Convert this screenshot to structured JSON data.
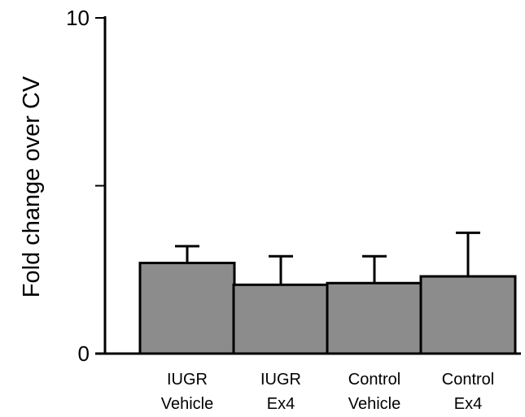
{
  "chart_data": {
    "type": "bar",
    "title": "",
    "xlabel": "",
    "ylabel": "Fold change over CV",
    "ylim": [
      0,
      10
    ],
    "y_ticks": [
      "0",
      "10"
    ],
    "grid": false,
    "categories": [
      [
        "IUGR",
        "Vehicle"
      ],
      [
        "IUGR",
        "Ex4"
      ],
      [
        "Control",
        "Vehicle"
      ],
      [
        "Control",
        "Ex4"
      ]
    ],
    "values": [
      2.7,
      2.05,
      2.1,
      2.3
    ],
    "error_upper": [
      0.5,
      0.85,
      0.8,
      1.3
    ],
    "bar_color": "#8c8c8c",
    "bar_edge_color": "#000000"
  }
}
